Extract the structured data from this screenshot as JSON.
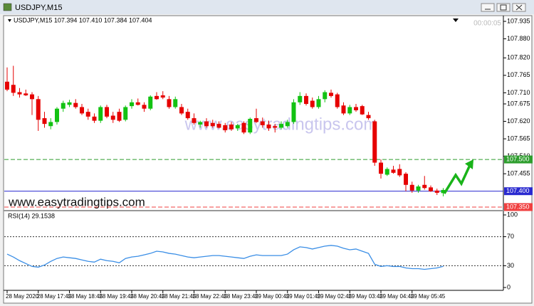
{
  "window_title": "USDJPY,M15",
  "chart_data": {
    "type": "candlestick",
    "info": "USDJPY,M15  107.394 107.410 107.384 107.404",
    "timer": "00:00:05",
    "watermarks": [
      "www.easytradingtips.com",
      "www.easytradingtips.com"
    ],
    "categories": [
      "28 May 2020",
      null,
      null,
      null,
      null,
      "28 May 17:45",
      null,
      null,
      null,
      null,
      "28 May 18:45",
      null,
      null,
      null,
      null,
      "28 May 19:45",
      null,
      null,
      null,
      null,
      "28 May 20:45",
      null,
      null,
      null,
      null,
      "28 May 21:45",
      null,
      null,
      null,
      null,
      "28 May 22:45",
      null,
      null,
      null,
      null,
      "28 May 23:45",
      null,
      null,
      null,
      null,
      "29 May 00:45",
      null,
      null,
      null,
      null,
      "29 May 01:45",
      null,
      null,
      null,
      null,
      "29 May 02:45",
      null,
      null,
      null,
      null,
      "29 May 03:45",
      null,
      null,
      null,
      null,
      "29 May 04:45",
      null,
      null,
      null,
      null,
      "29 May 05:45",
      null,
      null,
      null,
      null,
      null
    ],
    "open": [
      107.745,
      107.735,
      107.712,
      107.708,
      107.705,
      107.69,
      107.63,
      107.605,
      107.618,
      107.66,
      107.672,
      107.678,
      107.665,
      107.65,
      107.635,
      107.622,
      107.665,
      107.638,
      107.65,
      107.625,
      107.668,
      107.68,
      107.672,
      107.66,
      107.7,
      107.702,
      107.69,
      107.665,
      107.665,
      107.65,
      107.63,
      107.61,
      107.62,
      107.615,
      107.612,
      107.608,
      107.61,
      107.598,
      107.615,
      107.585,
      107.63,
      107.62,
      107.61,
      107.605,
      107.6,
      107.605,
      107.618,
      107.68,
      107.7,
      107.685,
      107.665,
      107.69,
      107.71,
      107.705,
      107.67,
      107.645,
      107.665,
      107.668,
      107.64,
      107.62,
      107.49,
      107.452,
      107.468,
      107.47,
      107.455,
      107.42,
      107.402,
      107.42,
      107.412,
      107.402,
      107.394
    ],
    "high": [
      107.79,
      107.795,
      107.725,
      107.72,
      107.712,
      107.7,
      107.65,
      107.63,
      107.665,
      107.685,
      107.688,
      107.69,
      107.675,
      107.66,
      107.645,
      107.67,
      107.672,
      107.65,
      107.66,
      107.67,
      107.69,
      107.692,
      107.68,
      107.702,
      107.712,
      107.715,
      107.7,
      107.698,
      107.675,
      107.66,
      107.645,
      107.622,
      107.63,
      107.625,
      107.62,
      107.615,
      107.618,
      107.612,
      107.62,
      107.632,
      107.66,
      107.632,
      107.622,
      107.612,
      107.62,
      107.625,
      107.69,
      107.712,
      107.708,
      107.695,
      107.7,
      107.718,
      107.72,
      107.71,
      107.68,
      107.672,
      107.675,
      107.672,
      107.65,
      107.625,
      107.5,
      107.475,
      107.48,
      107.485,
      107.46,
      107.43,
      107.42,
      107.448,
      107.418,
      107.408,
      107.41
    ],
    "low": [
      107.715,
      107.7,
      107.695,
      107.7,
      107.64,
      107.59,
      107.6,
      107.595,
      107.61,
      107.65,
      107.665,
      107.66,
      107.64,
      107.625,
      107.615,
      107.615,
      107.63,
      107.615,
      107.618,
      107.62,
      107.66,
      107.67,
      107.65,
      107.655,
      107.688,
      107.69,
      107.66,
      107.66,
      107.64,
      107.625,
      107.61,
      107.6,
      107.6,
      107.6,
      107.598,
      107.585,
      107.59,
      107.59,
      107.58,
      107.58,
      107.615,
      107.6,
      107.59,
      107.585,
      107.595,
      107.6,
      107.612,
      107.672,
      107.67,
      107.66,
      107.66,
      107.68,
      107.695,
      107.66,
      107.64,
      107.64,
      107.65,
      107.64,
      107.625,
      107.48,
      107.44,
      107.448,
      107.455,
      107.445,
      107.4,
      107.395,
      107.395,
      107.405,
      107.398,
      107.388,
      107.384
    ],
    "close": [
      107.72,
      107.71,
      107.705,
      107.702,
      107.69,
      107.625,
      107.612,
      107.618,
      107.66,
      107.678,
      107.68,
      107.665,
      107.645,
      107.635,
      107.622,
      107.665,
      107.635,
      107.625,
      107.622,
      107.665,
      107.68,
      107.672,
      107.66,
      107.698,
      107.69,
      107.695,
      107.665,
      107.69,
      107.645,
      107.63,
      107.615,
      107.618,
      107.605,
      107.605,
      107.6,
      107.592,
      107.595,
      107.608,
      107.585,
      107.628,
      107.618,
      107.608,
      107.598,
      107.6,
      107.612,
      107.618,
      107.68,
      107.7,
      107.675,
      107.665,
      107.69,
      107.712,
      107.7,
      107.665,
      107.645,
      107.665,
      107.655,
      107.642,
      107.63,
      107.49,
      107.455,
      107.47,
      107.458,
      107.45,
      107.42,
      107.402,
      107.415,
      107.41,
      107.4,
      107.395,
      107.404
    ],
    "up_color": "#12c212",
    "down_color": "#e60000",
    "ylim": [
      107.341,
      107.953
    ],
    "yticks": [
      107.935,
      {
        "value": 107.88,
        "label": "107.880"
      },
      {
        "value": 107.82,
        "label": "107.820"
      },
      107.765,
      {
        "value": 107.71,
        "label": "107.710"
      },
      107.675,
      {
        "value": 107.62,
        "label": "107.620"
      },
      107.565,
      {
        "value": 107.51,
        "label": "107.510"
      },
      107.455
    ],
    "hlines": [
      {
        "value": 107.5,
        "label": "107.500",
        "color": "#2e9e2e",
        "style": "dashed"
      },
      {
        "value": 107.4,
        "label": "107.400",
        "color": "#2a2ad0",
        "style": "solid"
      },
      {
        "value": 107.35,
        "label": "107.350",
        "color": "#f04040",
        "style": "dashed"
      }
    ],
    "indicator": {
      "type": "line",
      "title": "RSI(14) 29.1538",
      "color": "#3a8ee6",
      "ylim": [
        0,
        100
      ],
      "yticks": [
        100,
        70,
        30,
        0
      ],
      "levels": [
        70,
        30
      ],
      "values": [
        46,
        42,
        37,
        33,
        29,
        28,
        31,
        36,
        40,
        42,
        41,
        40,
        38,
        36,
        35,
        39,
        37,
        36,
        34,
        40,
        42,
        43,
        45,
        47,
        50,
        49,
        47,
        46,
        44,
        42,
        41,
        42,
        43,
        44,
        44,
        43,
        42,
        41,
        40,
        43,
        45,
        44,
        44,
        44,
        44,
        46,
        52,
        56,
        55,
        53,
        55,
        57,
        58,
        57,
        54,
        52,
        53,
        50,
        47,
        32,
        29,
        30,
        29,
        29,
        27,
        26,
        26,
        25,
        26,
        27,
        29.1538
      ]
    }
  }
}
